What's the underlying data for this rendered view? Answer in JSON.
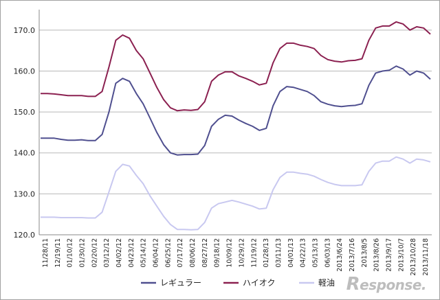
{
  "chart_data": {
    "type": "line",
    "ylim": [
      120,
      175
    ],
    "yticks": [
      "120.0",
      "130.0",
      "140.0",
      "150.0",
      "160.0",
      "170.0"
    ],
    "ytick_values": [
      120,
      130,
      140,
      150,
      160,
      170
    ],
    "x_labels": [
      "11/28/11",
      "12/19/11",
      "01/10/12",
      "01/30/12",
      "02/20/12",
      "03/12/12",
      "04/02/12",
      "04/23/12",
      "05/14/12",
      "06/04/12",
      "06/25/12",
      "07/17/12",
      "08/06/12",
      "08/27/12",
      "09/18/12",
      "10/09/12",
      "10/29/12",
      "11/19/12",
      "01/28/13",
      "03/11/13",
      "04/01/13",
      "04/22/13",
      "05/13/13",
      "06/03/13",
      "2013/6/24",
      "2013/7/16",
      "2013/8/5",
      "2013/8/26",
      "2013/9/17",
      "2013/10/7",
      "2013/10/28",
      "2013/11/18"
    ],
    "grid": true,
    "legend_position": "bottom",
    "series": [
      {
        "name": "レギュラー",
        "color": "#4f4f8f",
        "values": [
          143.6,
          143.6,
          143.6,
          143.3,
          143.1,
          143.1,
          143.2,
          143.0,
          143.0,
          144.5,
          150.0,
          157.0,
          158.2,
          157.5,
          154.5,
          152.0,
          148.5,
          145.0,
          142.0,
          140.0,
          139.5,
          139.6,
          139.6,
          139.7,
          141.8,
          146.5,
          148.2,
          149.2,
          149.0,
          148.0,
          147.2,
          146.5,
          145.5,
          146.0,
          151.5,
          155.0,
          156.2,
          156.0,
          155.5,
          155.0,
          154.0,
          152.5,
          151.9,
          151.5,
          151.3,
          151.5,
          151.6,
          152.0,
          156.5,
          159.5,
          160.0,
          160.2,
          161.2,
          160.5,
          159.0,
          160.0,
          159.5,
          158.0
        ]
      },
      {
        "name": "ハイオク",
        "color": "#8b2050",
        "values": [
          154.5,
          154.5,
          154.4,
          154.2,
          154.0,
          154.0,
          154.0,
          153.8,
          153.8,
          155.0,
          161.0,
          167.5,
          168.8,
          168.0,
          165.0,
          163.0,
          159.5,
          156.0,
          153.0,
          151.0,
          150.3,
          150.5,
          150.4,
          150.6,
          152.5,
          157.5,
          159.0,
          159.8,
          159.8,
          158.8,
          158.2,
          157.5,
          156.6,
          157.0,
          162.0,
          165.5,
          166.8,
          166.8,
          166.3,
          166.0,
          165.5,
          163.8,
          162.8,
          162.4,
          162.2,
          162.5,
          162.6,
          163.0,
          167.5,
          170.5,
          171.0,
          171.0,
          172.0,
          171.5,
          170.0,
          170.8,
          170.5,
          169.0
        ]
      },
      {
        "name": "軽油",
        "color": "#c8c8f0",
        "values": [
          124.3,
          124.3,
          124.3,
          124.2,
          124.2,
          124.2,
          124.2,
          124.1,
          124.1,
          125.5,
          130.5,
          135.5,
          137.2,
          136.8,
          134.5,
          132.5,
          129.5,
          127.0,
          124.5,
          122.5,
          121.3,
          121.3,
          121.2,
          121.3,
          123.0,
          126.5,
          127.6,
          128.0,
          128.4,
          128.0,
          127.5,
          127.0,
          126.3,
          126.5,
          131.0,
          134.0,
          135.3,
          135.3,
          135.0,
          134.8,
          134.3,
          133.5,
          132.8,
          132.3,
          132.0,
          132.0,
          132.0,
          132.2,
          135.5,
          137.5,
          138.0,
          138.0,
          139.0,
          138.5,
          137.5,
          138.5,
          138.3,
          137.8
        ]
      }
    ]
  },
  "watermark": {
    "initial": "R",
    "rest": "esponse."
  }
}
